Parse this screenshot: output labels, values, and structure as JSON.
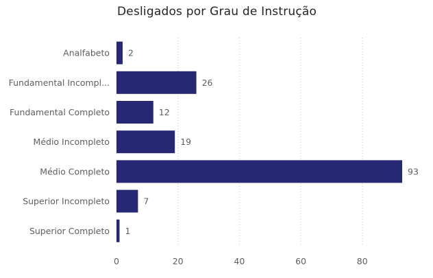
{
  "chart_data": {
    "type": "bar",
    "orientation": "horizontal",
    "title": "Desligados por Grau de Instrução",
    "categories": [
      "Analfabeto",
      "Fundamental Incompl...",
      "Fundamental Completo",
      "Médio Incompleto",
      "Médio Completo",
      "Superior Incompleto",
      "Superior Completo"
    ],
    "values": [
      2,
      26,
      12,
      19,
      93,
      7,
      1
    ],
    "xlim": [
      0,
      93
    ],
    "x_ticks": [
      0,
      20,
      40,
      60,
      80
    ],
    "grid": true,
    "data_labels": true,
    "bar_color": "#262874"
  }
}
